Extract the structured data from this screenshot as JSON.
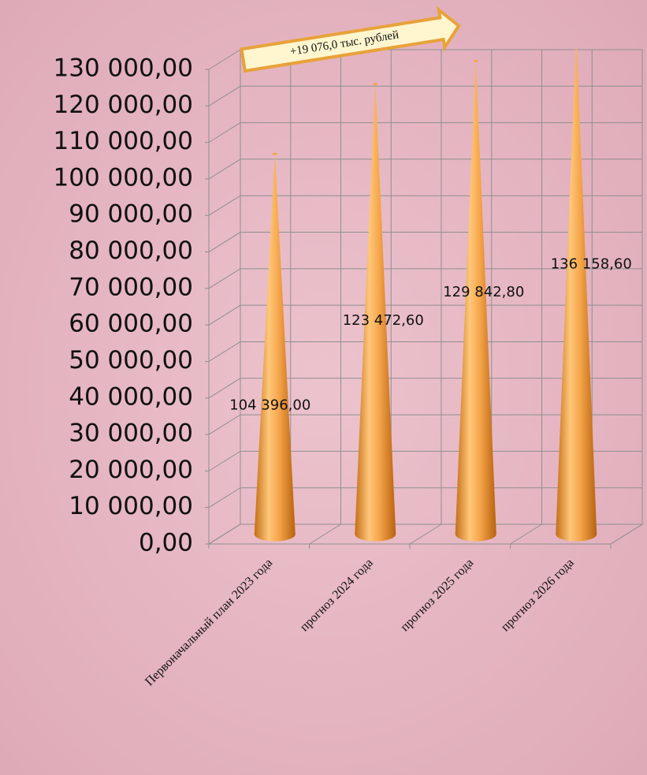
{
  "chart_data": {
    "type": "cone",
    "annotation": "+19 076,0 тыс. рублей",
    "categories": [
      "Первоначальный  план 2023 года",
      "прогноз 2024 года",
      "прогноз 2025 года",
      "прогноз 2026 года"
    ],
    "values": [
      104396,
      123472.6,
      129842.8,
      136158.6
    ],
    "value_labels": [
      "104 396,00",
      "123 472,60",
      "129 842,80",
      "136 158,60"
    ],
    "color": "#f5a54a",
    "ylim": [
      0,
      130000
    ],
    "yticks": [
      {
        "value": 0,
        "label": "0,00"
      },
      {
        "value": 10000,
        "label": "10 000,00"
      },
      {
        "value": 20000,
        "label": "20 000,00"
      },
      {
        "value": 30000,
        "label": "30 000,00"
      },
      {
        "value": 40000,
        "label": "40 000,00"
      },
      {
        "value": 50000,
        "label": "50 000,00"
      },
      {
        "value": 60000,
        "label": "60 000,00"
      },
      {
        "value": 70000,
        "label": "70 000,00"
      },
      {
        "value": 80000,
        "label": "80 000,00"
      },
      {
        "value": 90000,
        "label": "90 000,00"
      },
      {
        "value": 100000,
        "label": "100 000,00"
      },
      {
        "value": 110000,
        "label": "110 000,00"
      },
      {
        "value": 120000,
        "label": "120 000,00"
      },
      {
        "value": 130000,
        "label": "130 000,00"
      }
    ],
    "grid": true
  }
}
